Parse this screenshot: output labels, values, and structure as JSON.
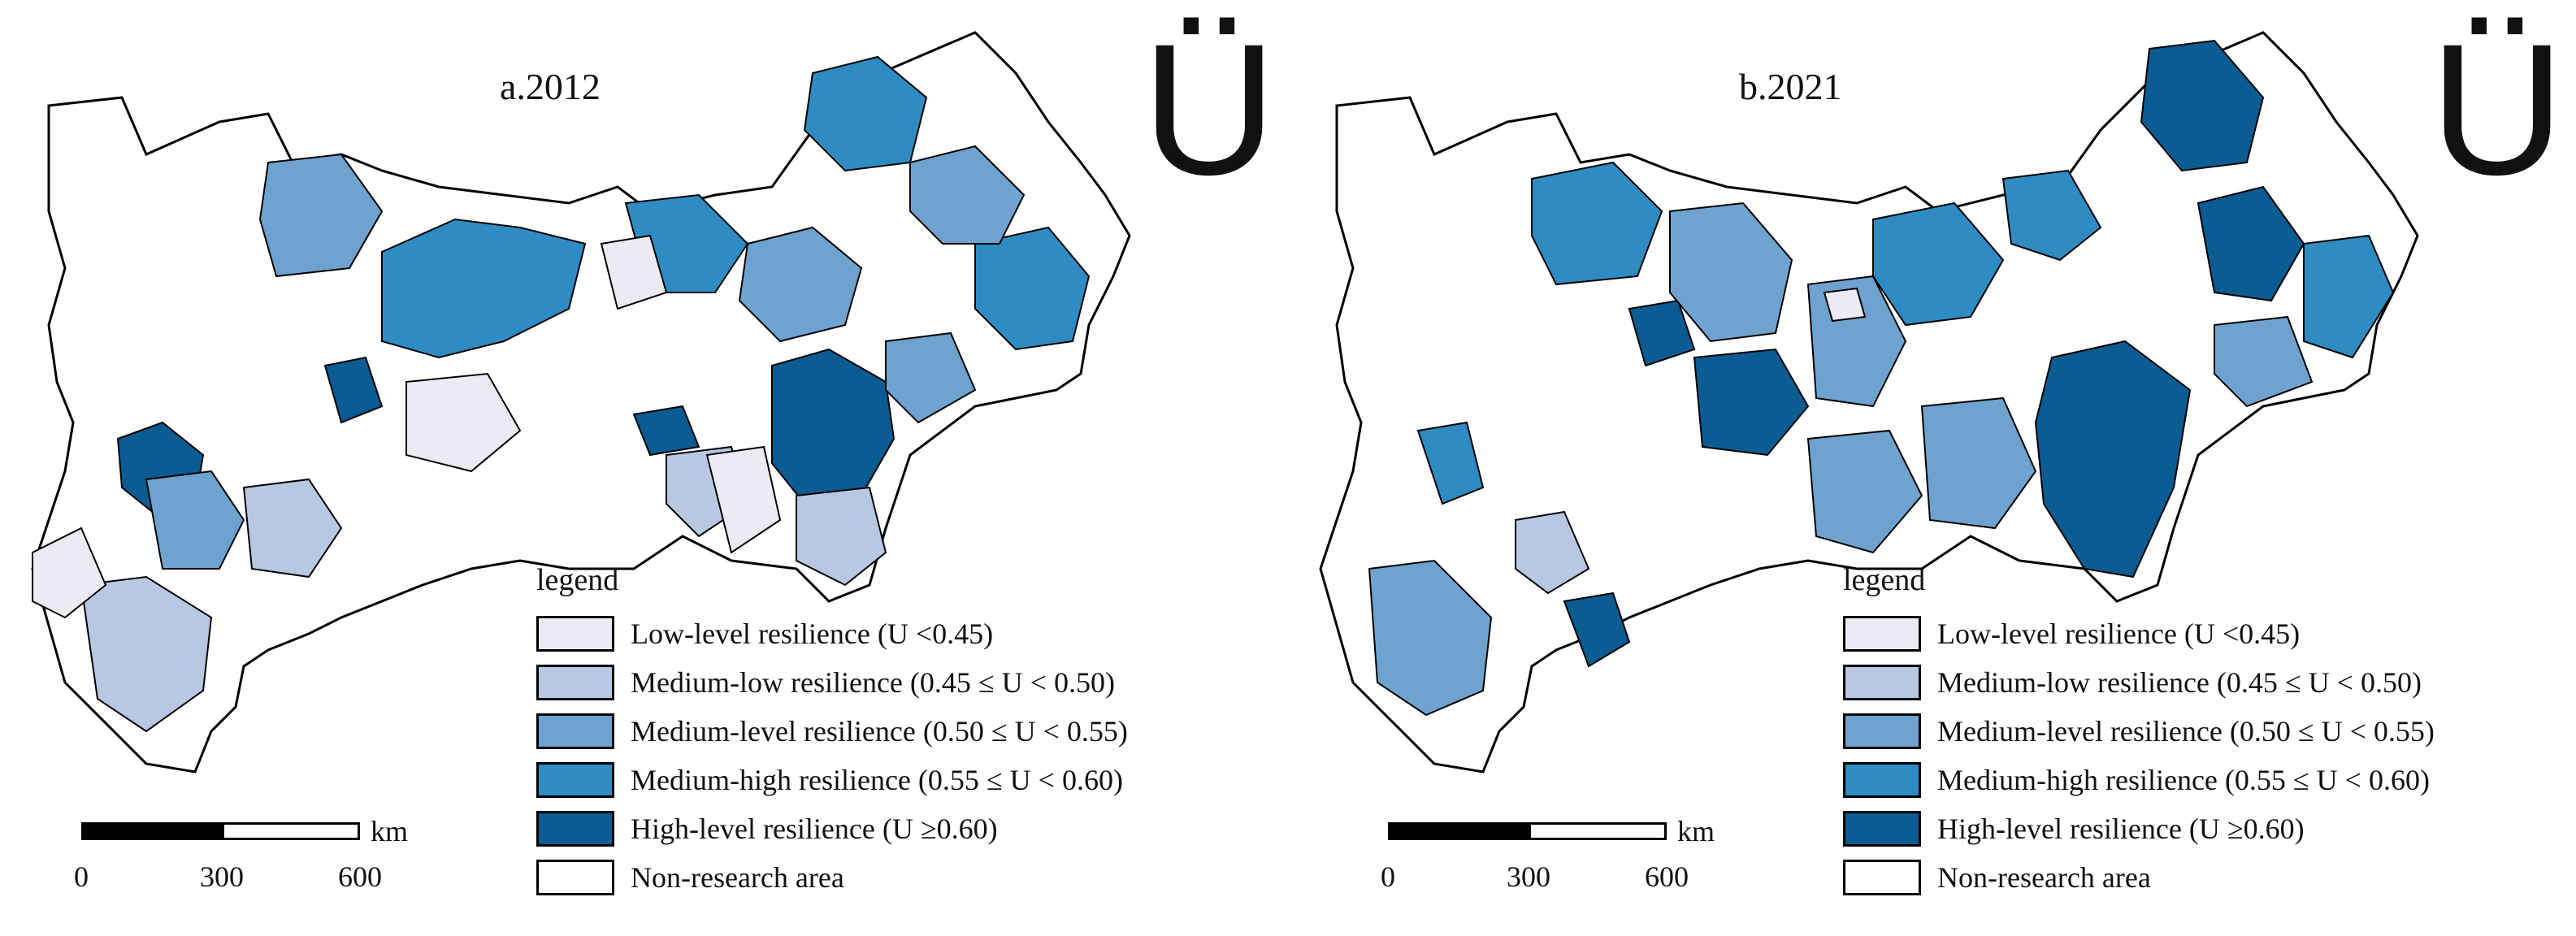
{
  "panels": [
    {
      "title": "a.2012",
      "north_symbol": "Ü",
      "legend_heading": "legend",
      "scale": {
        "ticks": [
          "0",
          "300",
          "600"
        ],
        "unit": "km"
      }
    },
    {
      "title": "b.2021",
      "north_symbol": "Ü",
      "legend_heading": "legend",
      "scale": {
        "ticks": [
          "0",
          "300",
          "600"
        ],
        "unit": "km"
      }
    }
  ],
  "legend": {
    "items": [
      {
        "key": "low",
        "label": "Low-level resilience (U <0.45)",
        "color": "#ECEBF4"
      },
      {
        "key": "medlow",
        "label": "Medium-low resilience (0.45 ≤ U < 0.50)",
        "color": "#B8C7E2"
      },
      {
        "key": "med",
        "label": "Medium-level resilience (0.50 ≤ U < 0.55)",
        "color": "#6FA3CF"
      },
      {
        "key": "medhigh",
        "label": "Medium-high resilience (0.55 ≤ U < 0.60)",
        "color": "#2E8CC3"
      },
      {
        "key": "high",
        "label": "High-level resilience (U ≥0.60)",
        "color": "#0A5C93"
      },
      {
        "key": "none",
        "label": "Non-research area",
        "color": "#FFFFFF"
      }
    ]
  }
}
